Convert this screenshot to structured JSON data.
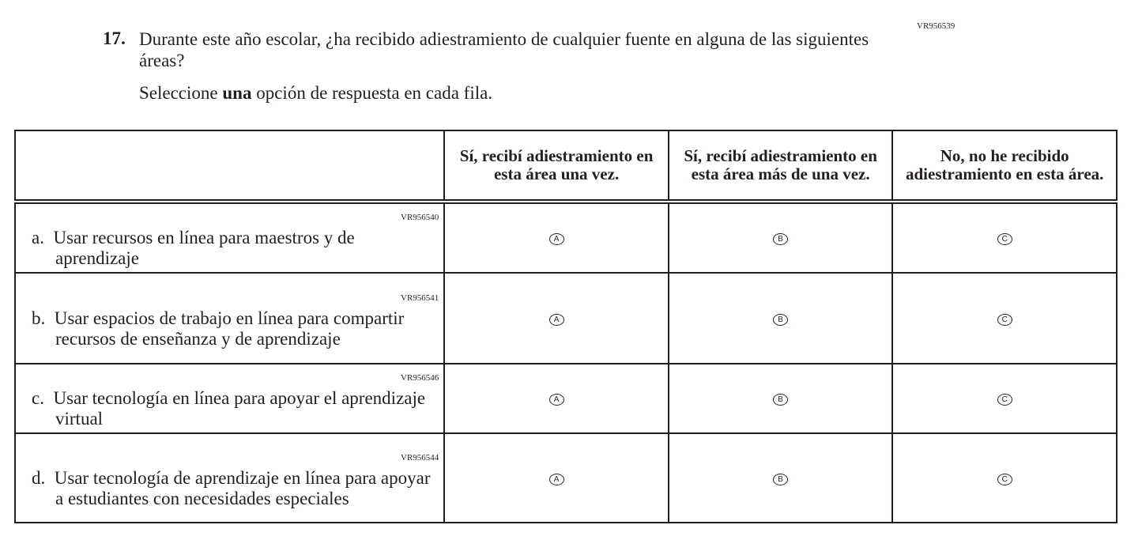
{
  "question": {
    "id": "VR956539",
    "number": "17.",
    "text": "Durante este año escolar, ¿ha recibido adiestramiento de cualquier fuente en alguna de las siguientes áreas?",
    "instruction_pre": "Seleccione ",
    "instruction_bold": "una",
    "instruction_post": " opción de respuesta en cada fila."
  },
  "columns": [
    "Sí, recibí adiestramiento en esta área una vez.",
    "Sí, recibí adiestramiento en esta área más de una vez.",
    "No, no he recibido adiestramiento en esta área."
  ],
  "options": [
    "A",
    "B",
    "C"
  ],
  "rows": [
    {
      "id": "VR956540",
      "letter": "a.",
      "text": "Usar recursos en línea para maestros y de aprendizaje"
    },
    {
      "id": "VR956541",
      "letter": "b.",
      "text": "Usar espacios de trabajo en línea para compartir recursos de enseñanza y de aprendizaje"
    },
    {
      "id": "VR956546",
      "letter": "c.",
      "text": "Usar tecnología en línea para apoyar el aprendizaje virtual"
    },
    {
      "id": "VR956544",
      "letter": "d.",
      "text": "Usar tecnología de aprendizaje en línea para apoyar a estudiantes con necesidades especiales"
    }
  ]
}
